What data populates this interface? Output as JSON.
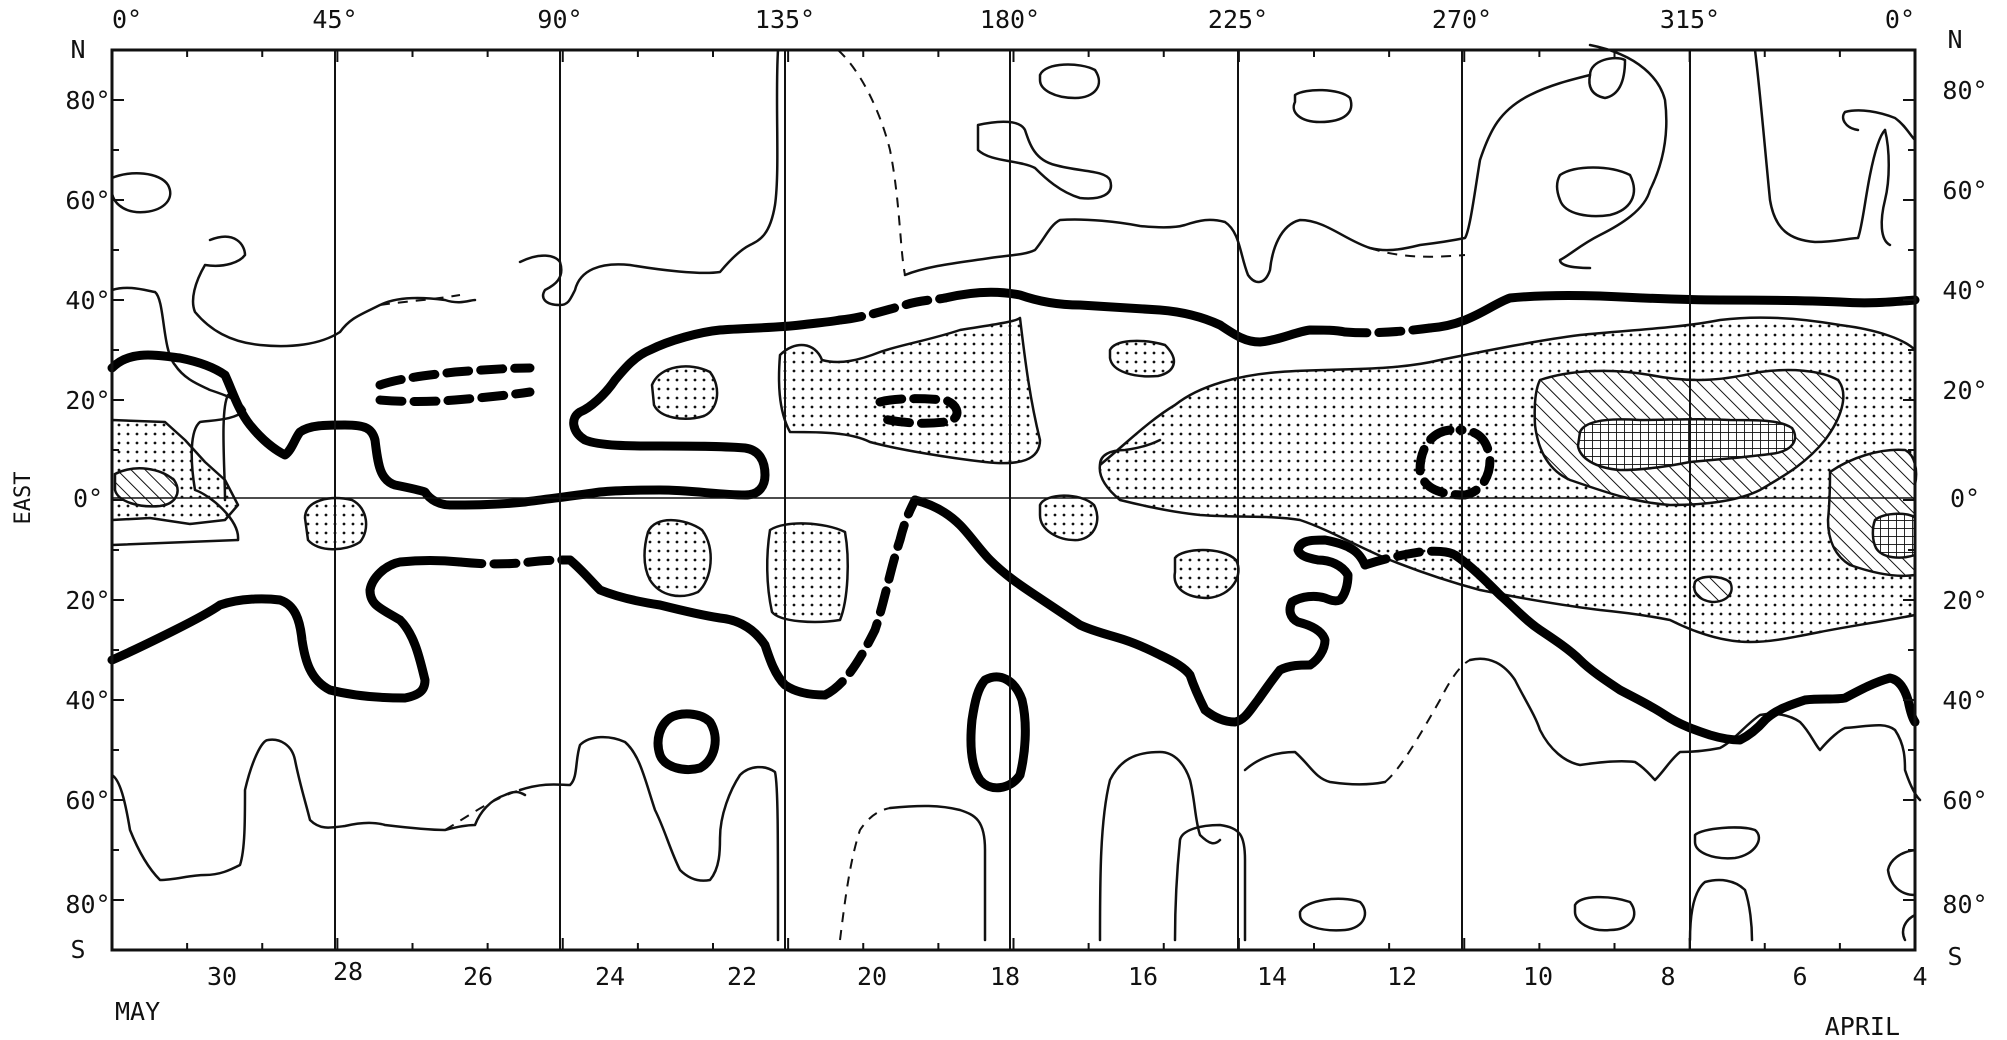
{
  "chart_data": {
    "type": "heatmap",
    "title": "",
    "x_top_label": "",
    "y_label": "EAST",
    "x_top_ticks": [
      "0°",
      "45°",
      "90°",
      "135°",
      "180°",
      "225°",
      "270°",
      "315°",
      "0°"
    ],
    "x_top_values": [
      0,
      45,
      90,
      135,
      180,
      225,
      270,
      315,
      360
    ],
    "x_bottom_ticks": [
      "30",
      "28",
      "26",
      "24",
      "22",
      "20",
      "18",
      "16",
      "14",
      "12",
      "10",
      "8",
      "6",
      "4"
    ],
    "x_bottom_months": {
      "left": "MAY",
      "right": "APRIL"
    },
    "y_ticks_left": [
      "N",
      "80°",
      "60°",
      "40°",
      "20°",
      "0°",
      "20°",
      "40°",
      "60°",
      "80°",
      "S"
    ],
    "y_ticks_right": [
      "N",
      "80°",
      "60°",
      "40°",
      "20°",
      "0°",
      "20°",
      "40°",
      "60°",
      "80°",
      "S"
    ],
    "y_values": [
      90,
      80,
      60,
      40,
      20,
      0,
      -20,
      -40,
      -60,
      -80,
      -90
    ],
    "xlim": [
      0,
      360
    ],
    "ylim": [
      -90,
      90
    ],
    "grid": true,
    "shading_levels": [
      "dotted",
      "hatched",
      "cross-hatched"
    ]
  }
}
